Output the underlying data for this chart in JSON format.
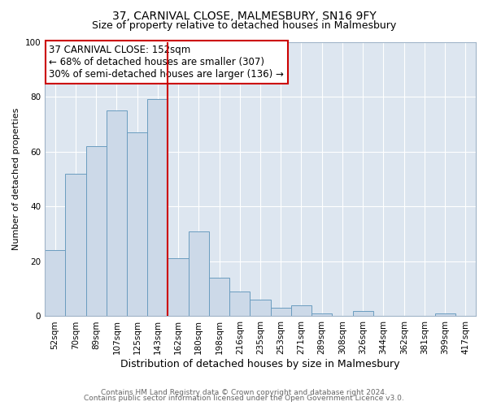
{
  "title": "37, CARNIVAL CLOSE, MALMESBURY, SN16 9FY",
  "subtitle": "Size of property relative to detached houses in Malmesbury",
  "xlabel": "Distribution of detached houses by size in Malmesbury",
  "ylabel": "Number of detached properties",
  "bar_labels": [
    "52sqm",
    "70sqm",
    "89sqm",
    "107sqm",
    "125sqm",
    "143sqm",
    "162sqm",
    "180sqm",
    "198sqm",
    "216sqm",
    "235sqm",
    "253sqm",
    "271sqm",
    "289sqm",
    "308sqm",
    "326sqm",
    "344sqm",
    "362sqm",
    "381sqm",
    "399sqm",
    "417sqm"
  ],
  "bar_values": [
    24,
    52,
    62,
    75,
    67,
    79,
    21,
    31,
    14,
    9,
    6,
    3,
    4,
    1,
    0,
    2,
    0,
    0,
    0,
    1,
    0
  ],
  "bar_color": "#ccd9e8",
  "bar_edgecolor": "#6a9cbf",
  "vline_x_index": 6,
  "vline_color": "#cc0000",
  "ylim": [
    0,
    100
  ],
  "annotation_box_text": "37 CARNIVAL CLOSE: 152sqm\n← 68% of detached houses are smaller (307)\n30% of semi-detached houses are larger (136) →",
  "annotation_box_edgecolor": "#cc0000",
  "annotation_box_facecolor": "white",
  "footer1": "Contains HM Land Registry data © Crown copyright and database right 2024.",
  "footer2": "Contains public sector information licensed under the Open Government Licence v3.0.",
  "fig_facecolor": "#ffffff",
  "plot_facecolor": "#dde6f0",
  "grid_color": "white",
  "title_fontsize": 10,
  "subtitle_fontsize": 9,
  "xlabel_fontsize": 9,
  "ylabel_fontsize": 8,
  "tick_fontsize": 7.5,
  "annotation_fontsize": 8.5,
  "footer_fontsize": 6.5
}
